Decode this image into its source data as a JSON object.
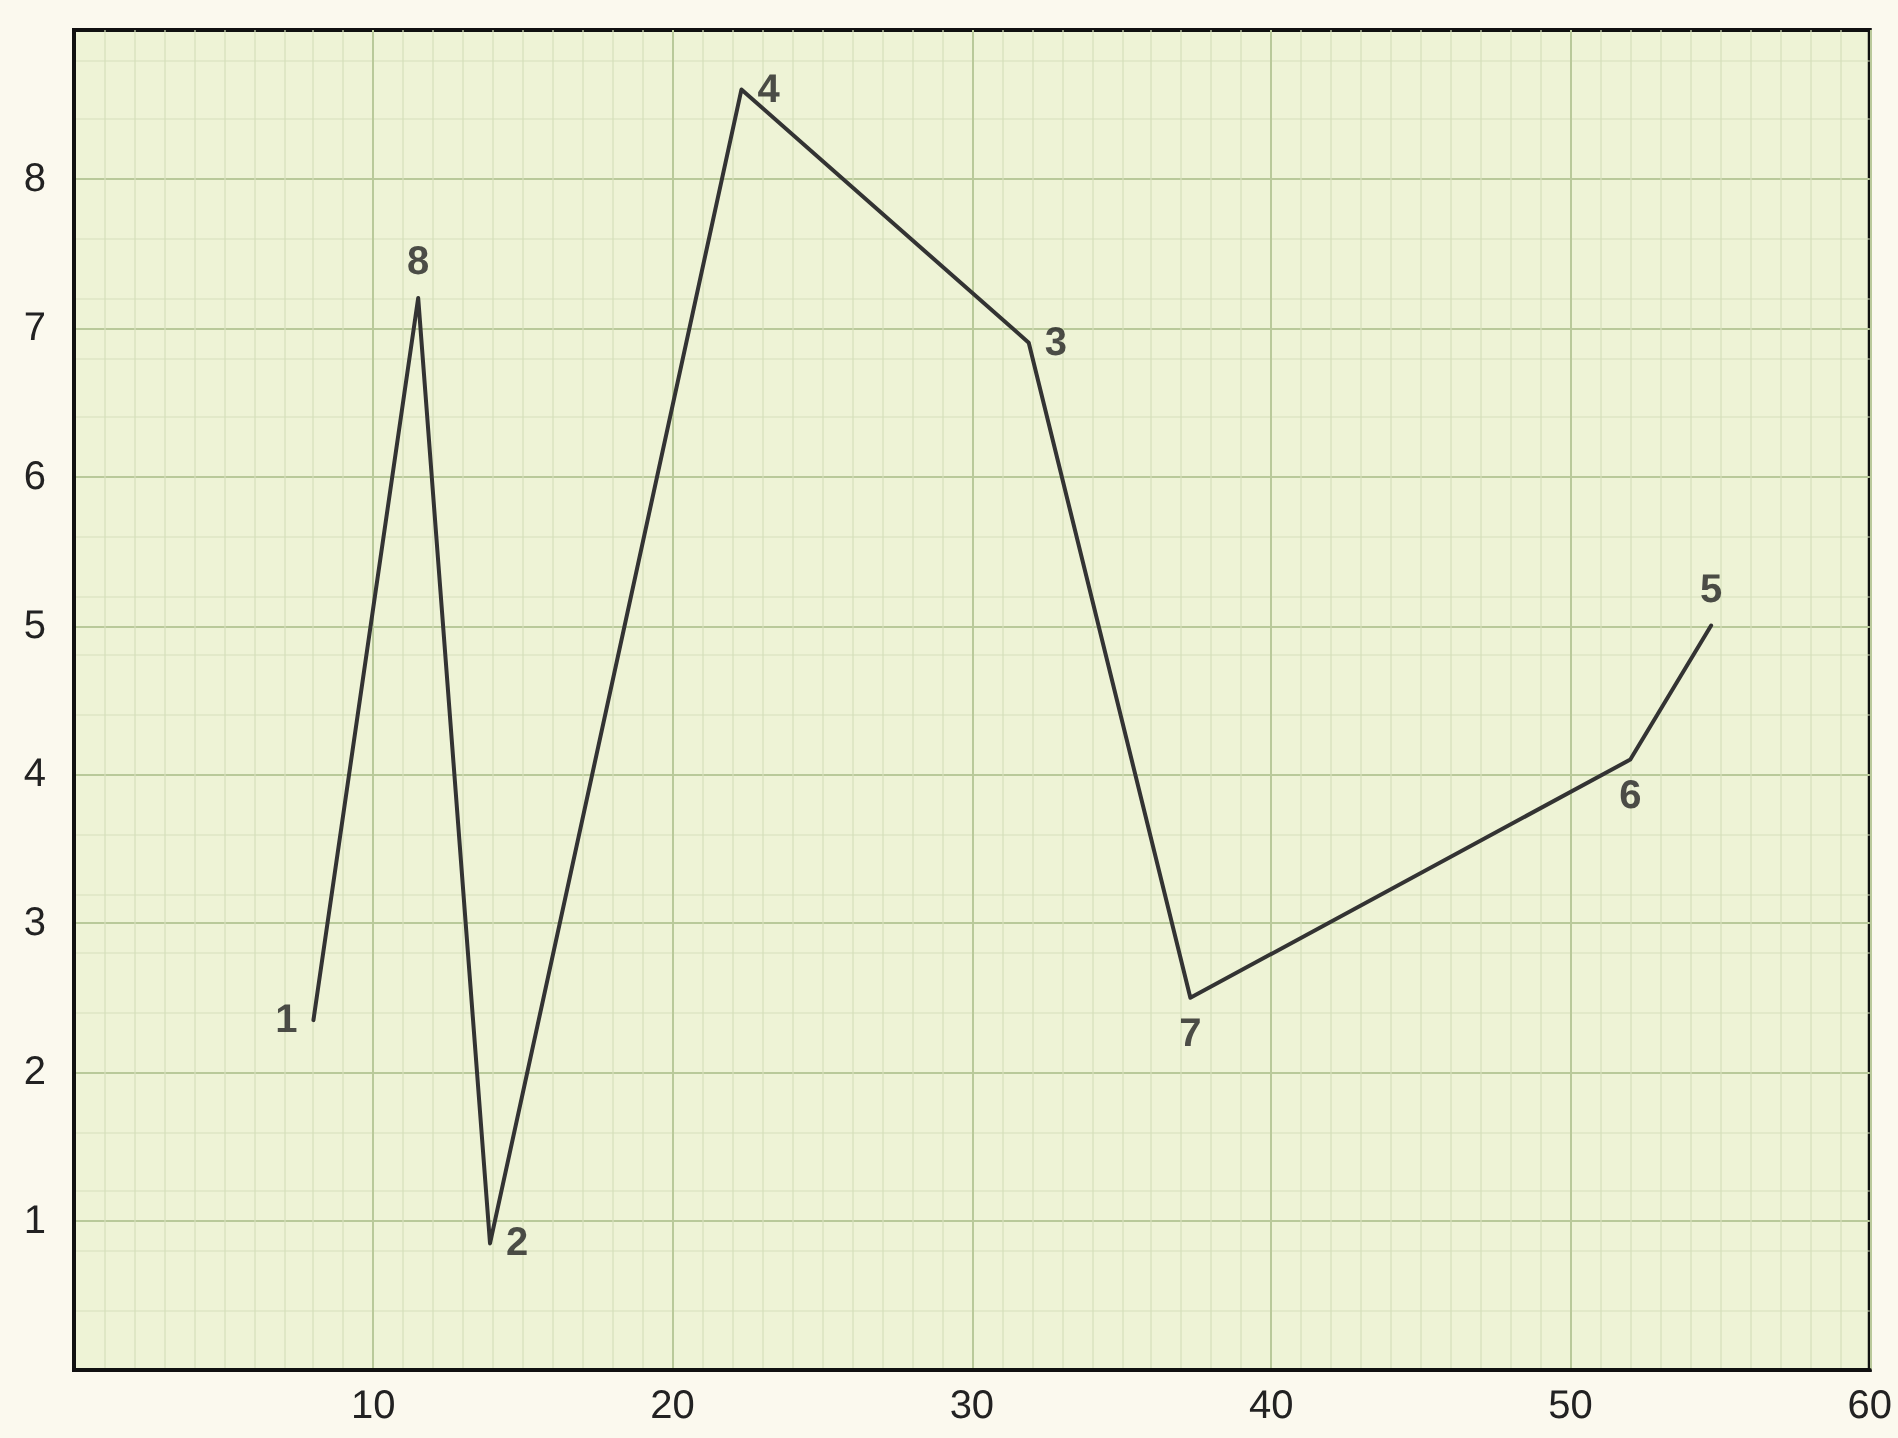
{
  "chart_data": {
    "type": "line",
    "x": [
      8,
      11.5,
      13.9,
      22.3,
      31.9,
      37.3,
      52,
      54.7
    ],
    "series": [
      {
        "color": "#333333",
        "values": [
          2.35,
          7.2,
          0.85,
          8.6,
          6.9,
          2.5,
          4.1,
          5.0
        ]
      }
    ],
    "xlim": [
      0,
      60
    ],
    "xticks": [
      10,
      20,
      30,
      40,
      50,
      60
    ],
    "ylim": [
      0,
      9
    ],
    "yticks": [
      1,
      2,
      3,
      4,
      5,
      6,
      7,
      8
    ],
    "grid": true,
    "marker": "none",
    "line_style": "solid",
    "annotations": [
      {
        "text": "1",
        "x": 8,
        "y": 2.35
      },
      {
        "text": "8",
        "x": 11.5,
        "y": 7.2
      },
      {
        "text": "2",
        "x": 13.9,
        "y": 0.85
      },
      {
        "text": "4",
        "x": 22.3,
        "y": 8.6
      },
      {
        "text": "3",
        "x": 31.9,
        "y": 6.9
      },
      {
        "text": "7",
        "x": 37.3,
        "y": 2.5
      },
      {
        "text": "6",
        "x": 52,
        "y": 4.1
      },
      {
        "text": "5",
        "x": 54.7,
        "y": 5.0
      }
    ]
  }
}
